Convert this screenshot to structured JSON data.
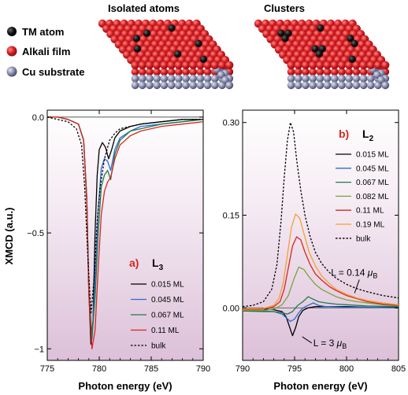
{
  "colors": {
    "black": "#000000",
    "blue": "#2a6bd1",
    "dkgreen": "#1f7a4a",
    "olive": "#7aa33a",
    "red": "#d7261e",
    "orange": "#f2a035"
  },
  "top_panel": {
    "legend": [
      {
        "label": "TM atom",
        "color": "#000000"
      },
      {
        "label": "Alkali film",
        "color": "#d71f26"
      },
      {
        "label": "Cu substrate",
        "color": "#7d7f9e"
      }
    ],
    "title_left": "Isolated atoms",
    "title_right": "Clusters"
  },
  "chart_data": [
    {
      "type": "line",
      "panel_label": "a)",
      "edge_main": "L",
      "edge_sub": "3",
      "xlabel": "Photon energy (eV)",
      "ylabel": "XMCD (a.u.)",
      "xlim": [
        775,
        790
      ],
      "ylim": [
        -1.05,
        0.03
      ],
      "xticks": [
        775,
        780,
        785,
        790
      ],
      "yticks": [
        0.0,
        -0.5,
        -1.0
      ],
      "ytick_labels": [
        "0.0",
        "−0.5",
        "−1"
      ],
      "xtick_labels": [
        "775",
        "780",
        "785",
        "790"
      ],
      "legend_position": "bottom-right",
      "series": [
        {
          "name": "0.015 ML",
          "color": "#000000",
          "dash": false,
          "x": [
            775,
            776,
            777,
            778,
            778.5,
            778.8,
            779.0,
            779.2,
            779.4,
            779.6,
            779.8,
            780.0,
            780.3,
            780.6,
            780.9,
            781.2,
            781.5,
            782,
            783,
            784,
            786,
            788,
            790
          ],
          "y": [
            0,
            0,
            -0.01,
            -0.03,
            -0.1,
            -0.35,
            -0.75,
            -0.98,
            -0.88,
            -0.5,
            -0.25,
            -0.14,
            -0.11,
            -0.13,
            -0.18,
            -0.14,
            -0.09,
            -0.06,
            -0.04,
            -0.03,
            -0.02,
            -0.01,
            -0.01
          ]
        },
        {
          "name": "0.045 ML",
          "color": "#2a6bd1",
          "dash": false,
          "x": [
            775,
            776,
            777,
            778,
            778.5,
            778.8,
            779.0,
            779.3,
            779.6,
            779.9,
            780.2,
            780.5,
            780.8,
            781.1,
            781.5,
            782,
            783,
            784,
            786,
            788,
            790
          ],
          "y": [
            0,
            0,
            -0.01,
            -0.03,
            -0.1,
            -0.35,
            -0.75,
            -0.96,
            -0.7,
            -0.4,
            -0.22,
            -0.18,
            -0.19,
            -0.23,
            -0.14,
            -0.09,
            -0.06,
            -0.04,
            -0.03,
            -0.02,
            -0.01
          ]
        },
        {
          "name": "0.067 ML",
          "color": "#1f7a4a",
          "dash": false,
          "x": [
            775,
            776,
            777,
            778,
            778.5,
            778.8,
            779.0,
            779.3,
            779.6,
            779.9,
            780.2,
            780.5,
            780.8,
            781.1,
            781.5,
            782,
            783,
            784,
            786,
            788,
            790
          ],
          "y": [
            0,
            0,
            -0.01,
            -0.03,
            -0.1,
            -0.35,
            -0.75,
            -0.95,
            -0.78,
            -0.5,
            -0.3,
            -0.25,
            -0.23,
            -0.27,
            -0.16,
            -0.1,
            -0.06,
            -0.05,
            -0.03,
            -0.02,
            -0.01
          ]
        },
        {
          "name": "0.11 ML",
          "color": "#d7261e",
          "dash": false,
          "x": [
            775,
            776,
            777,
            778,
            778.5,
            778.8,
            779.0,
            779.3,
            779.6,
            779.9,
            780.2,
            780.5,
            780.8,
            781.1,
            781.5,
            782,
            783,
            784,
            786,
            788,
            790
          ],
          "y": [
            0,
            0,
            -0.01,
            -0.03,
            -0.1,
            -0.37,
            -0.77,
            -1.0,
            -0.92,
            -0.65,
            -0.42,
            -0.32,
            -0.28,
            -0.26,
            -0.18,
            -0.12,
            -0.08,
            -0.06,
            -0.04,
            -0.03,
            -0.02
          ]
        },
        {
          "name": "bulk",
          "color": "#000000",
          "dash": true,
          "x": [
            775,
            776,
            777,
            777.8,
            778.3,
            778.6,
            778.9,
            779.2,
            779.5,
            779.8,
            780.1,
            780.5,
            781,
            781.5,
            782,
            783,
            784,
            786,
            788,
            790
          ],
          "y": [
            0,
            -0.01,
            -0.02,
            -0.05,
            -0.12,
            -0.3,
            -0.6,
            -0.85,
            -0.7,
            -0.45,
            -0.3,
            -0.18,
            -0.1,
            -0.07,
            -0.05,
            -0.04,
            -0.03,
            -0.02,
            -0.01,
            -0.01
          ]
        }
      ]
    },
    {
      "type": "line",
      "panel_label": "b)",
      "edge_main": "L",
      "edge_sub": "2",
      "xlabel": "Photon energy (eV)",
      "xlim": [
        790,
        805
      ],
      "ylim": [
        -0.085,
        0.32
      ],
      "xticks": [
        790,
        795,
        800,
        805
      ],
      "yticks": [
        0.0,
        0.15,
        0.3
      ],
      "ytick_labels": [
        "0.00",
        "0.15",
        "0.30"
      ],
      "xtick_labels": [
        "790",
        "795",
        "800",
        "805"
      ],
      "legend_position": "top-right",
      "annotations": [
        {
          "text_main": "L = 0.14 ",
          "mu": "μ",
          "sub": "B",
          "x": 798.5,
          "y": 0.052
        },
        {
          "text_main": "L = 3 ",
          "mu": "μ",
          "sub": "B",
          "x": 796.8,
          "y": -0.062
        }
      ],
      "series": [
        {
          "name": "0.015 ML",
          "color": "#000000",
          "dash": false,
          "x": [
            790,
            792,
            793,
            793.8,
            794.2,
            794.5,
            794.8,
            795.1,
            795.4,
            795.8,
            796.3,
            797,
            798,
            800,
            802,
            805
          ],
          "y": [
            -0.002,
            -0.002,
            -0.003,
            -0.006,
            -0.015,
            -0.03,
            -0.045,
            -0.032,
            -0.014,
            -0.004,
            0.0,
            0.002,
            0.002,
            0.002,
            0.001,
            0.001
          ]
        },
        {
          "name": "0.045 ML",
          "color": "#2a6bd1",
          "dash": false,
          "x": [
            790,
            792,
            793,
            793.8,
            794.2,
            794.6,
            795.0,
            795.4,
            795.8,
            796.3,
            796.8,
            797.3,
            798,
            800,
            802,
            805
          ],
          "y": [
            -0.004,
            -0.005,
            -0.006,
            -0.01,
            -0.016,
            -0.022,
            -0.018,
            -0.008,
            0.0,
            0.004,
            0.008,
            0.004,
            0.002,
            0.001,
            0.001,
            0.0
          ]
        },
        {
          "name": "0.067 ML",
          "color": "#1f7a4a",
          "dash": false,
          "x": [
            790,
            792,
            793,
            793.8,
            794.3,
            794.8,
            795.3,
            795.8,
            796.3,
            796.8,
            797.3,
            798,
            799,
            800,
            802,
            805
          ],
          "y": [
            -0.005,
            -0.006,
            -0.006,
            -0.008,
            -0.01,
            -0.006,
            0.004,
            0.01,
            0.018,
            0.014,
            0.01,
            0.008,
            0.006,
            0.005,
            0.003,
            0.002
          ]
        },
        {
          "name": "0.082 ML",
          "color": "#7aa33a",
          "dash": false,
          "x": [
            790,
            792,
            793,
            793.8,
            794.4,
            794.9,
            795.4,
            795.9,
            796.4,
            797,
            797.6,
            798.3,
            799,
            800,
            801,
            802,
            803.5,
            805
          ],
          "y": [
            -0.004,
            -0.004,
            -0.002,
            0.005,
            0.02,
            0.045,
            0.066,
            0.062,
            0.05,
            0.038,
            0.03,
            0.024,
            0.018,
            0.013,
            0.01,
            0.008,
            0.005,
            0.003
          ]
        },
        {
          "name": "0.11 ML",
          "color": "#d7261e",
          "dash": false,
          "x": [
            790,
            792,
            793,
            793.6,
            794.0,
            794.4,
            794.8,
            795.2,
            795.6,
            796.0,
            796.5,
            797,
            797.6,
            798.3,
            799,
            800,
            801,
            802,
            803.5,
            805
          ],
          "y": [
            -0.003,
            -0.002,
            0.002,
            0.01,
            0.03,
            0.065,
            0.1,
            0.115,
            0.11,
            0.09,
            0.07,
            0.055,
            0.045,
            0.035,
            0.028,
            0.02,
            0.015,
            0.01,
            0.006,
            0.004
          ]
        },
        {
          "name": "0.19 ML",
          "color": "#f2a035",
          "dash": false,
          "x": [
            790,
            792,
            793,
            793.5,
            793.9,
            794.3,
            794.7,
            795.1,
            795.5,
            795.9,
            796.4,
            797,
            797.6,
            798.3,
            799,
            800,
            801,
            802,
            803.5,
            805
          ],
          "y": [
            -0.002,
            -0.001,
            0.004,
            0.015,
            0.04,
            0.085,
            0.13,
            0.152,
            0.145,
            0.12,
            0.09,
            0.068,
            0.052,
            0.04,
            0.03,
            0.022,
            0.016,
            0.012,
            0.008,
            0.005
          ]
        },
        {
          "name": "bulk",
          "color": "#000000",
          "dash": true,
          "x": [
            790,
            791,
            792,
            792.8,
            793.3,
            793.7,
            794.0,
            794.3,
            794.6,
            794.9,
            795.2,
            795.6,
            796.0,
            796.5,
            797,
            797.6,
            798.3,
            799,
            800,
            801,
            802,
            803.5,
            805
          ],
          "y": [
            0.002,
            0.004,
            0.01,
            0.03,
            0.07,
            0.14,
            0.21,
            0.27,
            0.3,
            0.285,
            0.24,
            0.19,
            0.15,
            0.115,
            0.09,
            0.072,
            0.058,
            0.048,
            0.038,
            0.031,
            0.026,
            0.02,
            0.016
          ]
        }
      ]
    }
  ]
}
